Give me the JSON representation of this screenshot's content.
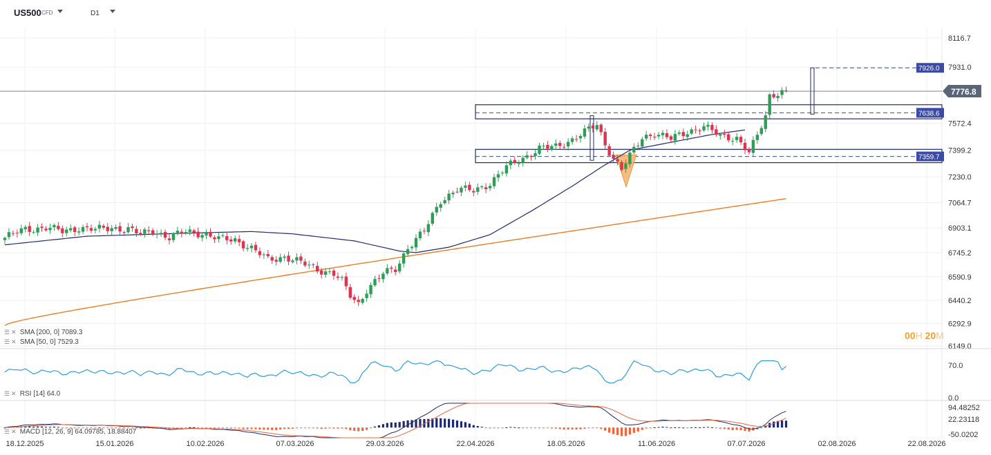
{
  "header": {
    "symbol": "US500",
    "instrument_type": "CFD",
    "timeframe": "D1"
  },
  "indicators": {
    "sma200_label": "SMA [200, 0] 7089.3",
    "sma50_label": "SMA [50, 0] 7529.3",
    "rsi_label": "RSI [14] 64.0",
    "macd_label": "MACD [12, 26, 9] 64.09785, 18.88407"
  },
  "timer": {
    "hours": "00",
    "h_unit": "H",
    "minutes": "20",
    "m_unit": "M"
  },
  "colors": {
    "up": "#2e9e57",
    "down": "#e0334f",
    "sma200": "#f07c22",
    "sma50": "#1f2a6b",
    "rsi": "#2b9fe0",
    "macd_up": "#1f2a6b",
    "macd_down": "#f0643c",
    "box": "#1f2a6b",
    "triangle": "#f5b26b",
    "last_price": "#5a6578",
    "level_tag": "#3a4aa6"
  },
  "chart_data": {
    "type": "candlestick",
    "price_axis_ticks": [
      8116.7,
      7931.0,
      7572.4,
      7399.2,
      7230.0,
      7064.7,
      6903.1,
      6745.2,
      6590.9,
      6440.2,
      6292.9,
      6149.0
    ],
    "price_axis_labels": [
      "8116.7",
      "7931.0",
      "7572.4",
      "7399.2",
      "7230.0",
      "7064.7",
      "6903.1",
      "6745.2",
      "6590.9",
      "6440.2",
      "6292.9",
      "6149.0"
    ],
    "date_axis_labels": [
      "18.12.2025",
      "15.01.2026",
      "10.02.2026",
      "07.03.2026",
      "29.03.2026",
      "22.04.2026",
      "18.05.2026",
      "11.06.2026",
      "07.07.2026",
      "02.08.2026",
      "22.08.2026"
    ],
    "last_price": "7776.8",
    "levels": [
      {
        "value": 7926.0,
        "label": "7926.0"
      },
      {
        "value": 7638.6,
        "label": "7638.6"
      },
      {
        "value": 7359.7,
        "label": "7359.7"
      }
    ],
    "zones": [
      {
        "from": 7600,
        "to": 7690
      },
      {
        "from": 7320,
        "to": 7405
      }
    ],
    "sma200": {
      "name": "SMA [200, 0]",
      "start": 6280,
      "end": 7090
    },
    "sma50_anchor_values": [
      [
        0,
        6795
      ],
      [
        20,
        6850
      ],
      [
        45,
        6870
      ],
      [
        60,
        6880
      ],
      [
        70,
        6865
      ],
      [
        85,
        6820
      ],
      [
        96,
        6755
      ],
      [
        100,
        6745
      ],
      [
        108,
        6780
      ],
      [
        118,
        6860
      ],
      [
        128,
        7010
      ],
      [
        138,
        7170
      ],
      [
        145,
        7290
      ],
      [
        152,
        7400
      ],
      [
        162,
        7450
      ],
      [
        172,
        7500
      ],
      [
        180,
        7529
      ]
    ],
    "rsi": {
      "name": "RSI [14]",
      "value": 64.0,
      "axis": [
        "70.0",
        "0.0"
      ],
      "ylim": [
        0,
        100
      ]
    },
    "macd": {
      "name": "MACD [12, 26, 9]",
      "macd": 64.09785,
      "signal": 18.88407,
      "axis": [
        "94.48252",
        "22.23118",
        "-50.0202"
      ],
      "ylim": [
        -60,
        100
      ]
    },
    "ohlc_anchor_closes": [
      [
        0,
        6840
      ],
      [
        5,
        6895
      ],
      [
        10,
        6905
      ],
      [
        14,
        6880
      ],
      [
        18,
        6905
      ],
      [
        22,
        6890
      ],
      [
        26,
        6905
      ],
      [
        30,
        6895
      ],
      [
        33,
        6860
      ],
      [
        36,
        6890
      ],
      [
        40,
        6840
      ],
      [
        44,
        6880
      ],
      [
        48,
        6870
      ],
      [
        52,
        6830
      ],
      [
        56,
        6830
      ],
      [
        60,
        6770
      ],
      [
        64,
        6700
      ],
      [
        68,
        6720
      ],
      [
        72,
        6680
      ],
      [
        76,
        6640
      ],
      [
        80,
        6610
      ],
      [
        82,
        6560
      ],
      [
        84,
        6470
      ],
      [
        86,
        6420
      ],
      [
        88,
        6510
      ],
      [
        92,
        6610
      ],
      [
        95,
        6640
      ],
      [
        98,
        6780
      ],
      [
        102,
        6880
      ],
      [
        106,
        7080
      ],
      [
        110,
        7150
      ],
      [
        114,
        7140
      ],
      [
        118,
        7190
      ],
      [
        122,
        7290
      ],
      [
        126,
        7350
      ],
      [
        130,
        7410
      ],
      [
        134,
        7420
      ],
      [
        138,
        7470
      ],
      [
        142,
        7530
      ],
      [
        144,
        7560
      ],
      [
        146,
        7440
      ],
      [
        148,
        7350
      ],
      [
        150,
        7280
      ],
      [
        152,
        7360
      ],
      [
        155,
        7480
      ],
      [
        158,
        7510
      ],
      [
        162,
        7470
      ],
      [
        166,
        7520
      ],
      [
        170,
        7550
      ],
      [
        174,
        7490
      ],
      [
        178,
        7480
      ],
      [
        181,
        7380
      ],
      [
        183,
        7490
      ],
      [
        185,
        7620
      ],
      [
        186,
        7750
      ],
      [
        188,
        7770
      ],
      [
        190,
        7776.8
      ]
    ]
  }
}
